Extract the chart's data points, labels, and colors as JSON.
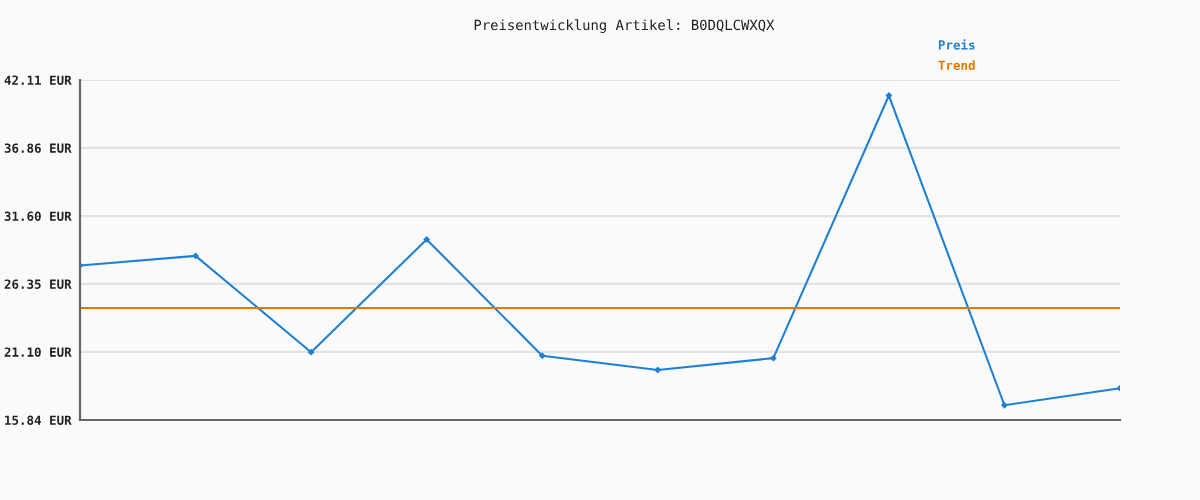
{
  "chart_data": {
    "type": "line",
    "title": "Preisentwicklung Artikel: B0DQLCWXQX",
    "categories": [
      null,
      null,
      null,
      null,
      null,
      null,
      null,
      null,
      null,
      null
    ],
    "series": [
      {
        "name": "Preis",
        "color": "#1f80d3",
        "marker": "diamond",
        "values": [
          27.78,
          28.52,
          21.08,
          29.79,
          20.8,
          19.7,
          20.62,
          40.91,
          16.98,
          18.3
        ]
      },
      {
        "name": "Trend",
        "color": "#e07800",
        "marker": "none",
        "values": [
          24.5,
          24.5,
          24.5,
          24.5,
          24.5,
          24.5,
          24.5,
          24.5,
          24.5,
          24.5
        ]
      }
    ],
    "ylim": [
      15.84,
      42.11
    ],
    "yticks": [
      {
        "value": 15.84,
        "label": "15.84 EUR"
      },
      {
        "value": 21.1,
        "label": "21.10 EUR"
      },
      {
        "value": 26.35,
        "label": "26.35 EUR"
      },
      {
        "value": 31.6,
        "label": "31.60 EUR"
      },
      {
        "value": 36.86,
        "label": "36.86 EUR"
      },
      {
        "value": 42.11,
        "label": "42.11 EUR"
      }
    ],
    "grid": "y",
    "legend": "top right",
    "tick_labels": "y",
    "line_style": "solid"
  }
}
